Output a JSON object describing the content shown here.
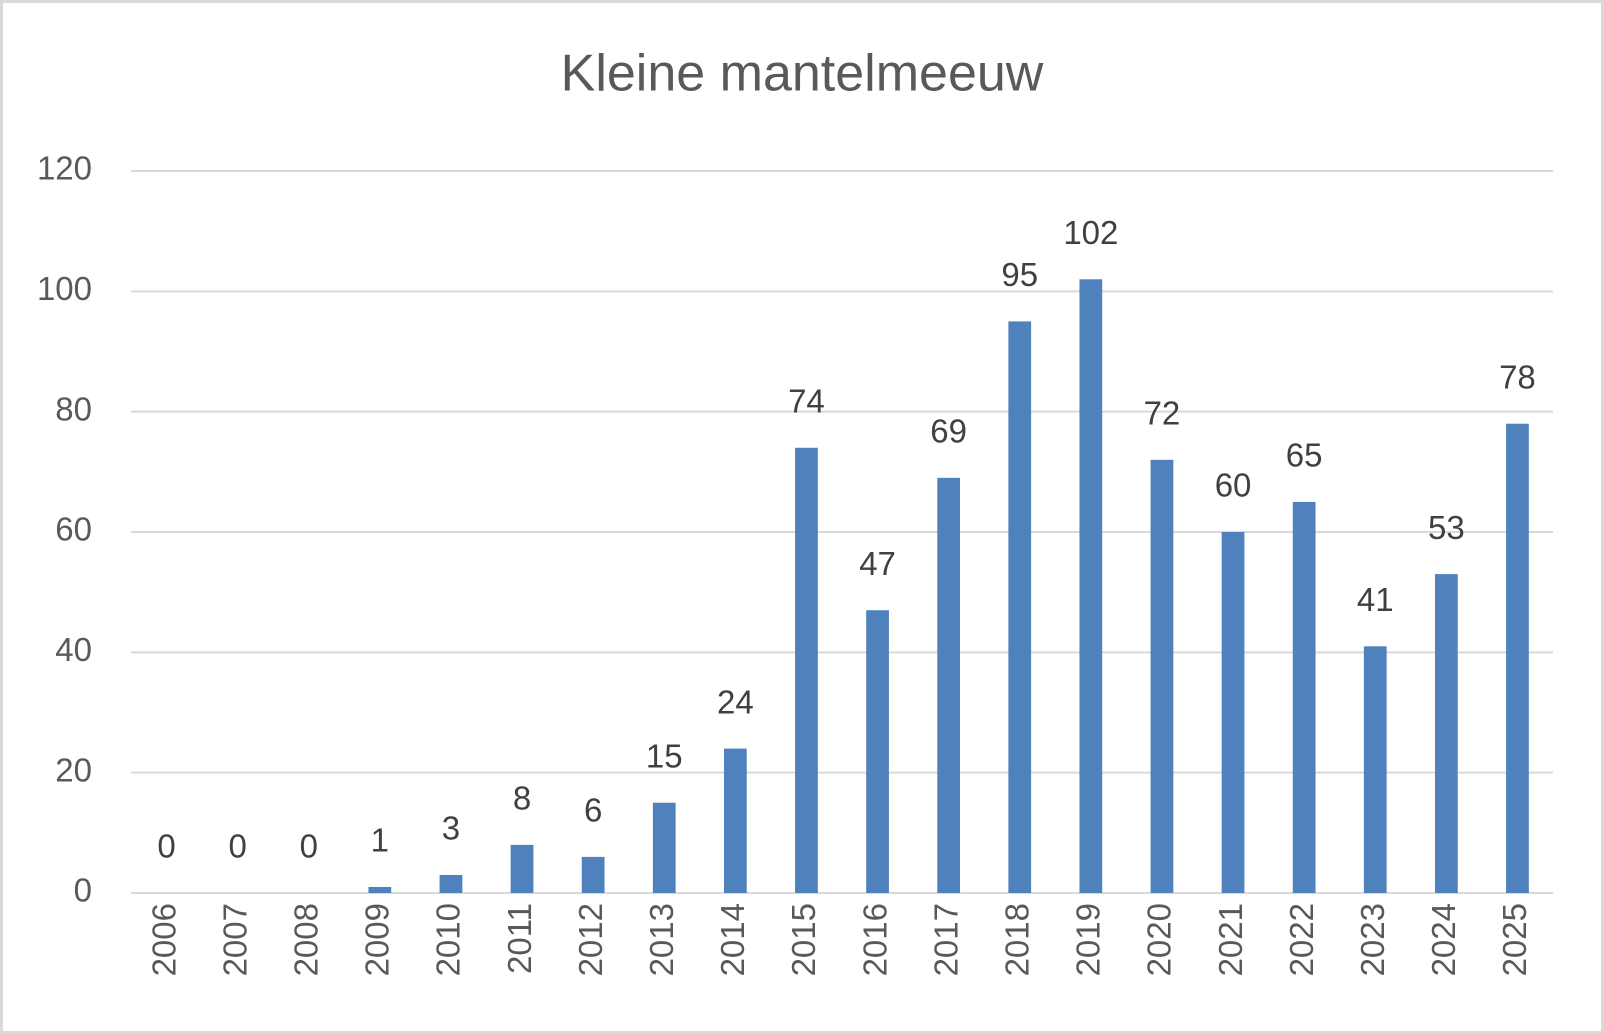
{
  "chart_data": {
    "type": "bar",
    "title": "Kleine mantelmeeuw",
    "categories": [
      "2006",
      "2007",
      "2008",
      "2009",
      "2010",
      "2011",
      "2012",
      "2013",
      "2014",
      "2015",
      "2016",
      "2017",
      "2018",
      "2019",
      "2020",
      "2021",
      "2022",
      "2023",
      "2024",
      "2025"
    ],
    "values": [
      0,
      0,
      0,
      1,
      3,
      8,
      6,
      15,
      24,
      74,
      47,
      69,
      95,
      102,
      72,
      60,
      65,
      41,
      53,
      78
    ],
    "color": "#4f81bd",
    "ylim": [
      0,
      120
    ],
    "yticks": [
      0,
      20,
      40,
      60,
      80,
      100,
      120
    ],
    "grid": true
  }
}
